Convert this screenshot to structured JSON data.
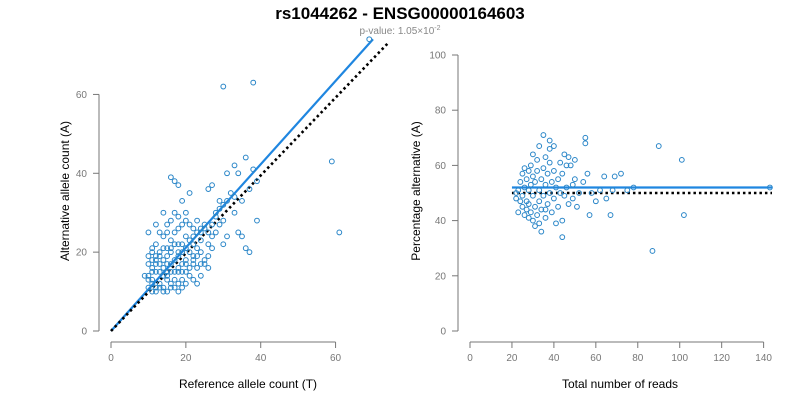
{
  "figure": {
    "title": "rs1044262 - ENSG00000164603",
    "subtitle_prefix": "p-value: 1.05×10",
    "subtitle_exponent": "-2"
  },
  "colors": {
    "points": "#2a86c8",
    "fit_line": "#1f86e0",
    "reference_line": "#000000",
    "axis": "#777777"
  },
  "chart_data": [
    {
      "type": "scatter",
      "name": "allele-count-scatter",
      "xlabel": "Reference allele count (T)",
      "ylabel": "Alternative allele count (A)",
      "xlim": [
        0,
        70
      ],
      "ylim": [
        0,
        70
      ],
      "xticks": [
        0,
        20,
        40,
        60
      ],
      "yticks": [
        0,
        20,
        40,
        60
      ],
      "grid": false,
      "lines": [
        {
          "style": "solid",
          "color": "#1f86e0",
          "x": [
            0,
            70
          ],
          "y": [
            0,
            74
          ]
        },
        {
          "style": "dotted",
          "color": "#000000",
          "x": [
            0,
            74
          ],
          "y": [
            0,
            73
          ]
        }
      ],
      "points": [
        [
          69,
          74
        ],
        [
          61,
          25
        ],
        [
          59,
          43
        ],
        [
          38,
          63
        ],
        [
          30,
          62
        ],
        [
          38,
          41
        ],
        [
          39,
          38
        ],
        [
          37,
          36
        ],
        [
          33,
          42
        ],
        [
          31,
          40
        ],
        [
          32,
          35
        ],
        [
          33,
          30
        ],
        [
          34,
          25
        ],
        [
          35,
          24
        ],
        [
          36,
          21
        ],
        [
          39,
          28
        ],
        [
          27,
          37
        ],
        [
          26,
          36
        ],
        [
          28,
          30
        ],
        [
          29,
          33
        ],
        [
          30,
          28
        ],
        [
          31,
          24
        ],
        [
          30,
          22
        ],
        [
          29,
          27
        ],
        [
          28,
          25
        ],
        [
          27,
          24
        ],
        [
          26,
          22
        ],
        [
          25,
          26
        ],
        [
          24,
          23
        ],
        [
          26,
          19
        ],
        [
          25,
          18
        ],
        [
          24,
          20
        ],
        [
          23,
          21
        ],
        [
          22,
          22
        ],
        [
          22,
          19
        ],
        [
          21,
          20
        ],
        [
          22,
          17
        ],
        [
          23,
          16
        ],
        [
          24,
          14
        ],
        [
          21,
          16
        ],
        [
          20,
          18
        ],
        [
          20,
          15
        ],
        [
          19,
          17
        ],
        [
          18,
          19
        ],
        [
          18,
          16
        ],
        [
          17,
          18
        ],
        [
          16,
          20
        ],
        [
          16,
          17
        ],
        [
          15,
          19
        ],
        [
          15,
          15
        ],
        [
          14,
          18
        ],
        [
          14,
          16
        ],
        [
          13,
          20
        ],
        [
          13,
          17
        ],
        [
          12,
          19
        ],
        [
          12,
          15
        ],
        [
          11,
          18
        ],
        [
          11,
          15
        ],
        [
          10,
          14
        ],
        [
          11,
          12
        ],
        [
          12,
          11
        ],
        [
          13,
          12
        ],
        [
          14,
          11
        ],
        [
          15,
          13
        ],
        [
          16,
          12
        ],
        [
          17,
          13
        ],
        [
          18,
          12
        ],
        [
          19,
          13
        ],
        [
          20,
          12
        ],
        [
          21,
          14
        ],
        [
          22,
          13
        ],
        [
          23,
          12
        ],
        [
          17,
          38
        ],
        [
          18,
          37
        ],
        [
          16,
          39
        ],
        [
          21,
          35
        ],
        [
          19,
          33
        ],
        [
          20,
          30
        ],
        [
          18,
          29
        ],
        [
          17,
          30
        ],
        [
          16,
          28
        ],
        [
          15,
          27
        ],
        [
          15,
          25
        ],
        [
          14,
          24
        ],
        [
          13,
          25
        ],
        [
          12,
          22
        ],
        [
          11,
          21
        ],
        [
          10,
          25
        ],
        [
          12,
          27
        ],
        [
          14,
          30
        ],
        [
          16,
          23
        ],
        [
          17,
          25
        ],
        [
          18,
          26
        ],
        [
          19,
          27
        ],
        [
          20,
          28
        ],
        [
          21,
          27
        ],
        [
          22,
          26
        ],
        [
          23,
          28
        ],
        [
          24,
          25
        ],
        [
          25,
          27
        ],
        [
          10,
          11
        ],
        [
          11,
          10
        ],
        [
          12,
          10
        ],
        [
          13,
          11
        ],
        [
          14,
          10
        ],
        [
          15,
          10
        ],
        [
          16,
          11
        ],
        [
          17,
          11
        ],
        [
          18,
          10
        ],
        [
          19,
          11
        ],
        [
          10,
          17
        ],
        [
          11,
          16
        ],
        [
          12,
          17
        ],
        [
          13,
          15
        ],
        [
          14,
          14
        ],
        [
          15,
          14
        ],
        [
          16,
          15
        ],
        [
          17,
          15
        ],
        [
          18,
          15
        ],
        [
          19,
          15
        ],
        [
          10,
          19
        ],
        [
          11,
          20
        ],
        [
          12,
          18
        ],
        [
          13,
          19
        ],
        [
          14,
          21
        ],
        [
          15,
          21
        ],
        [
          16,
          21
        ],
        [
          17,
          22
        ],
        [
          18,
          22
        ],
        [
          19,
          22
        ],
        [
          20,
          21
        ],
        [
          21,
          23
        ],
        [
          22,
          24
        ],
        [
          23,
          25
        ],
        [
          24,
          26
        ],
        [
          26,
          25
        ],
        [
          27,
          27
        ],
        [
          28,
          29
        ],
        [
          29,
          31
        ],
        [
          30,
          32
        ],
        [
          31,
          33
        ],
        [
          33,
          34
        ],
        [
          35,
          33
        ],
        [
          34,
          40
        ],
        [
          36,
          44
        ],
        [
          37,
          20
        ],
        [
          20,
          24
        ],
        [
          23,
          19
        ],
        [
          25,
          17
        ],
        [
          27,
          21
        ],
        [
          10,
          13
        ],
        [
          9,
          14
        ],
        [
          11,
          13
        ],
        [
          20,
          17
        ],
        [
          22,
          18
        ],
        [
          24,
          17
        ],
        [
          26,
          16
        ],
        [
          18,
          20
        ],
        [
          19,
          20
        ],
        [
          15,
          17
        ]
      ]
    },
    {
      "type": "scatter",
      "name": "percentage-scatter",
      "xlabel": "Total number of reads",
      "ylabel": "Percentage alternative (A)",
      "xlim": [
        0,
        144
      ],
      "ylim": [
        0,
        100
      ],
      "xticks": [
        0,
        20,
        40,
        60,
        80,
        100,
        120,
        140
      ],
      "yticks": [
        0,
        20,
        40,
        60,
        80,
        100
      ],
      "grid": false,
      "lines": [
        {
          "style": "solid",
          "color": "#1f86e0",
          "x": [
            20,
            144
          ],
          "y": [
            52,
            52
          ]
        },
        {
          "style": "dotted",
          "color": "#000000",
          "x": [
            20,
            144
          ],
          "y": [
            50,
            50
          ]
        }
      ],
      "points": [
        [
          143,
          52
        ],
        [
          102,
          42
        ],
        [
          101,
          62
        ],
        [
          90,
          67
        ],
        [
          87,
          29
        ],
        [
          78,
          52
        ],
        [
          75,
          51
        ],
        [
          72,
          57
        ],
        [
          69,
          56
        ],
        [
          68,
          51
        ],
        [
          67,
          42
        ],
        [
          65,
          48
        ],
        [
          64,
          56
        ],
        [
          62,
          51
        ],
        [
          60,
          47
        ],
        [
          58,
          50
        ],
        [
          57,
          42
        ],
        [
          56,
          57
        ],
        [
          55,
          70
        ],
        [
          55,
          68
        ],
        [
          54,
          54
        ],
        [
          52,
          50
        ],
        [
          51,
          45
        ],
        [
          50,
          62
        ],
        [
          50,
          55
        ],
        [
          49,
          53
        ],
        [
          48,
          60
        ],
        [
          47,
          63
        ],
        [
          47,
          46
        ],
        [
          46,
          52
        ],
        [
          45,
          64
        ],
        [
          45,
          49
        ],
        [
          44,
          57
        ],
        [
          44,
          40
        ],
        [
          43,
          61
        ],
        [
          43,
          50
        ],
        [
          42,
          55
        ],
        [
          42,
          45
        ],
        [
          41,
          52
        ],
        [
          41,
          39
        ],
        [
          40,
          58
        ],
        [
          40,
          48
        ],
        [
          39,
          54
        ],
        [
          39,
          43
        ],
        [
          38,
          69
        ],
        [
          38,
          61
        ],
        [
          38,
          50
        ],
        [
          37,
          57
        ],
        [
          37,
          46
        ],
        [
          36,
          63
        ],
        [
          36,
          53
        ],
        [
          36,
          41
        ],
        [
          35,
          71
        ],
        [
          35,
          59
        ],
        [
          35,
          49
        ],
        [
          34,
          55
        ],
        [
          34,
          44
        ],
        [
          34,
          36
        ],
        [
          33,
          67
        ],
        [
          33,
          51
        ],
        [
          33,
          47
        ],
        [
          32,
          62
        ],
        [
          32,
          58
        ],
        [
          32,
          42
        ],
        [
          31,
          54
        ],
        [
          31,
          45
        ],
        [
          31,
          38
        ],
        [
          30,
          64
        ],
        [
          30,
          56
        ],
        [
          30,
          49
        ],
        [
          29,
          53
        ],
        [
          29,
          43
        ],
        [
          29,
          60
        ],
        [
          28,
          58
        ],
        [
          28,
          51
        ],
        [
          28,
          46
        ],
        [
          28,
          41
        ],
        [
          27,
          55
        ],
        [
          27,
          47
        ],
        [
          27,
          44
        ],
        [
          26,
          59
        ],
        [
          26,
          52
        ],
        [
          26,
          42
        ],
        [
          25,
          57
        ],
        [
          25,
          49
        ],
        [
          25,
          45
        ],
        [
          24,
          54
        ],
        [
          24,
          47
        ],
        [
          23,
          51
        ],
        [
          23,
          43
        ],
        [
          22,
          48
        ],
        [
          22,
          50
        ],
        [
          44,
          34
        ],
        [
          40,
          67
        ],
        [
          38,
          66
        ],
        [
          36,
          44
        ],
        [
          33,
          39
        ],
        [
          30,
          40
        ],
        [
          46,
          60
        ],
        [
          49,
          48
        ]
      ]
    }
  ]
}
